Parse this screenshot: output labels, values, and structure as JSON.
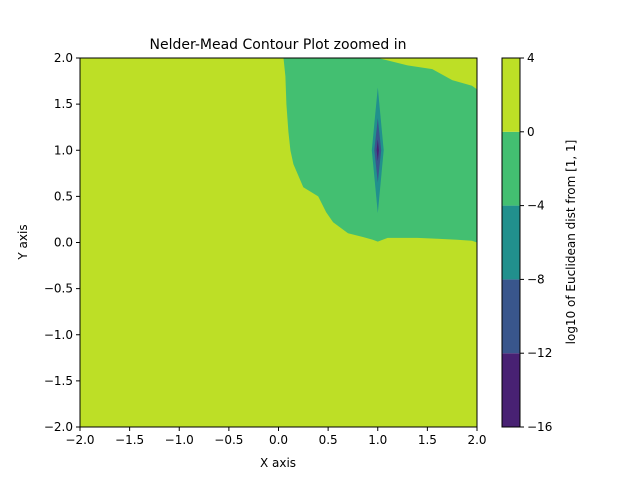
{
  "chart_data": {
    "type": "contour",
    "title": "Nelder-Mead Contour Plot zoomed in",
    "xlabel": "X axis",
    "ylabel": "Y axis",
    "xlim": [
      -2.0,
      2.0
    ],
    "ylim": [
      -2.0,
      2.0
    ],
    "x_ticks": [
      -2.0,
      -1.5,
      -1.0,
      -0.5,
      0.0,
      0.5,
      1.0,
      1.5,
      2.0
    ],
    "x_tick_labels": [
      "−2.0",
      "−1.5",
      "−1.0",
      "−0.5",
      "0.0",
      "0.5",
      "1.0",
      "1.5",
      "2.0"
    ],
    "y_ticks": [
      -2.0,
      -1.5,
      -1.0,
      -0.5,
      0.0,
      0.5,
      1.0,
      1.5,
      2.0
    ],
    "y_tick_labels": [
      "−2.0",
      "−1.5",
      "−1.0",
      "−0.5",
      "0.0",
      "0.5",
      "1.0",
      "1.5",
      "2.0"
    ],
    "grid": false,
    "colorbar": {
      "label": "log10 of Euclidean dist from [1, 1]",
      "levels": [
        -16,
        -12,
        -8,
        -4,
        0,
        4
      ],
      "tick_labels": [
        "−16",
        "−12",
        "−8",
        "−4",
        "0",
        "4"
      ],
      "band_colors": [
        "#482173",
        "#39568c",
        "#21908d",
        "#43bf71",
        "#bddf26"
      ]
    },
    "regions": [
      {
        "level_band": "-4 to 0",
        "color": "#43bf71",
        "boundary": [
          [
            0.05,
            2.0
          ],
          [
            1.0,
            2.0
          ],
          [
            1.3,
            1.92
          ],
          [
            1.55,
            1.88
          ],
          [
            1.75,
            1.76
          ],
          [
            1.95,
            1.7
          ],
          [
            2.0,
            1.66
          ],
          [
            2.0,
            0.0
          ],
          [
            1.95,
            0.02
          ],
          [
            1.8,
            0.03
          ],
          [
            1.6,
            0.04
          ],
          [
            1.4,
            0.05
          ],
          [
            1.2,
            0.05
          ],
          [
            1.1,
            0.05
          ],
          [
            1.0,
            0.01
          ],
          [
            0.95,
            0.03
          ],
          [
            0.85,
            0.06
          ],
          [
            0.7,
            0.1
          ],
          [
            0.55,
            0.22
          ],
          [
            0.48,
            0.33
          ],
          [
            0.4,
            0.5
          ],
          [
            0.25,
            0.6
          ],
          [
            0.15,
            0.85
          ],
          [
            0.12,
            1.0
          ],
          [
            0.1,
            1.2
          ],
          [
            0.08,
            1.5
          ],
          [
            0.07,
            1.8
          ],
          [
            0.05,
            2.0
          ]
        ]
      },
      {
        "level_band": "-8 to -4",
        "color": "#21908d",
        "boundary": [
          [
            1.0,
            1.68
          ],
          [
            1.06,
            1.0
          ],
          [
            1.0,
            0.32
          ],
          [
            0.94,
            1.0
          ]
        ]
      },
      {
        "level_band": "-12 to -8",
        "color": "#39568c",
        "boundary": [
          [
            1.0,
            1.35
          ],
          [
            1.035,
            1.0
          ],
          [
            1.0,
            0.65
          ],
          [
            0.965,
            1.0
          ]
        ]
      },
      {
        "level_band": "-16 to -12",
        "color": "#482173",
        "boundary": [
          [
            1.0,
            1.12
          ],
          [
            1.012,
            1.0
          ],
          [
            1.0,
            0.88
          ],
          [
            0.988,
            1.0
          ]
        ]
      }
    ],
    "background_band": {
      "level_band": "0 to 4",
      "color": "#bddf26"
    }
  }
}
